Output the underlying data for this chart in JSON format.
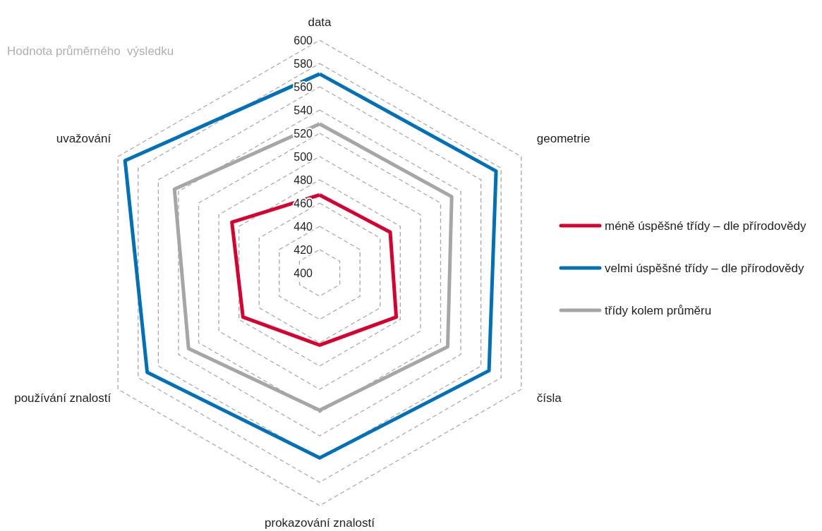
{
  "chart_data": {
    "type": "radar",
    "ylabel": "Hodnota průměrného  výsledku",
    "categories": [
      "data",
      "geometrie",
      "čísla",
      "prokazování znalostí",
      "používání znalostí",
      "uvažování"
    ],
    "series": [
      {
        "name": "méně úspěšné třídy – dle přírodovědy",
        "color": "#d7002f",
        "values": [
          467,
          470,
          476,
          462,
          476,
          487
        ]
      },
      {
        "name": "velmi úspěšné třídy – dle přírodovědy",
        "color": "#0070b8",
        "values": [
          571,
          575,
          568,
          559,
          571,
          593
        ]
      },
      {
        "name": "třídy kolem průměru",
        "color": "#a6a6a6",
        "values": [
          528,
          531,
          527,
          518,
          530,
          544
        ]
      }
    ],
    "ylim": [
      400,
      600
    ],
    "yticks": [
      400,
      420,
      440,
      460,
      480,
      500,
      520,
      540,
      560,
      580,
      600
    ],
    "grid": true,
    "legend": "right",
    "line_style": "solid",
    "marker": "none"
  }
}
